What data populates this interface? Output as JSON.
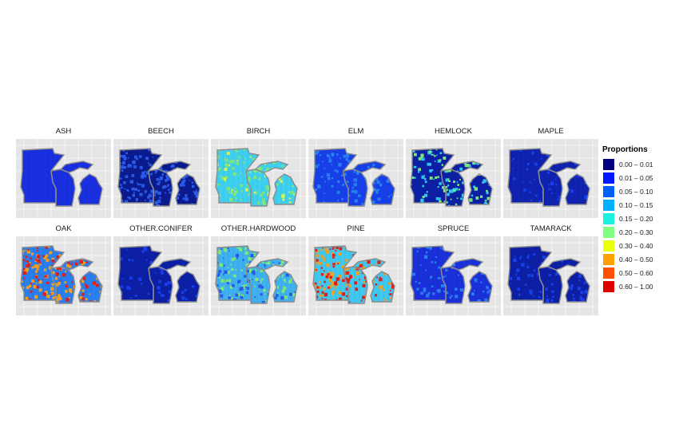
{
  "panels": [
    {
      "title": "ASH",
      "base": "#1a2fe0",
      "hot": []
    },
    {
      "title": "BEECH",
      "base": "#0a1a8f",
      "hot": [
        [
          "#2a5ae6",
          0.9
        ]
      ]
    },
    {
      "title": "BIRCH",
      "base": "#3fd0f0",
      "hot": [
        [
          "#7fe87a",
          0.6
        ],
        [
          "#d8f25a",
          0.2
        ]
      ]
    },
    {
      "title": "ELM",
      "base": "#1840e8",
      "hot": [
        [
          "#2a7ff0",
          0.5
        ]
      ]
    },
    {
      "title": "HEMLOCK",
      "base": "#0d1fa5",
      "hot": [
        [
          "#2fc8f0",
          0.5
        ],
        [
          "#7fe87a",
          0.3
        ]
      ]
    },
    {
      "title": "MAPLE",
      "base": "#0f22b0",
      "hot": [
        [
          "#1840e8",
          0.3
        ]
      ]
    },
    {
      "title": "OAK",
      "base": "#2a7ff0",
      "hot": [
        [
          "#f5a020",
          0.6
        ],
        [
          "#e0201a",
          0.4
        ]
      ]
    },
    {
      "title": "OTHER.CONIFER",
      "base": "#0d1fa5",
      "hot": [
        [
          "#1840e8",
          0.3
        ]
      ]
    },
    {
      "title": "OTHER.HARDWOOD",
      "base": "#3fb0f0",
      "hot": [
        [
          "#7fe87a",
          0.6
        ],
        [
          "#2a5ae6",
          0.4
        ]
      ]
    },
    {
      "title": "PINE",
      "base": "#3fc8f0",
      "hot": [
        [
          "#f5a020",
          0.5
        ],
        [
          "#e0201a",
          0.5
        ]
      ]
    },
    {
      "title": "SPRUCE",
      "base": "#1a30d8",
      "hot": [
        [
          "#2a7ff0",
          0.4
        ]
      ]
    },
    {
      "title": "TAMARACK",
      "base": "#0d1fa5",
      "hot": [
        [
          "#1840e8",
          0.4
        ]
      ]
    }
  ],
  "legend": {
    "title": "Proportions",
    "items": [
      {
        "label": "0.00 – 0.01",
        "color": "#000080"
      },
      {
        "label": "0.01 – 0.05",
        "color": "#0018ff"
      },
      {
        "label": "0.05 – 0.10",
        "color": "#0060ff"
      },
      {
        "label": "0.10 – 0.15",
        "color": "#00b0ff"
      },
      {
        "label": "0.15 – 0.20",
        "color": "#1ef0e0"
      },
      {
        "label": "0.20 – 0.30",
        "color": "#80ff80"
      },
      {
        "label": "0.30 – 0.40",
        "color": "#e8ff10"
      },
      {
        "label": "0.40 – 0.50",
        "color": "#ffa000"
      },
      {
        "label": "0.50 – 0.60",
        "color": "#ff5000"
      },
      {
        "label": "0.60 – 1.00",
        "color": "#e00000"
      }
    ]
  }
}
